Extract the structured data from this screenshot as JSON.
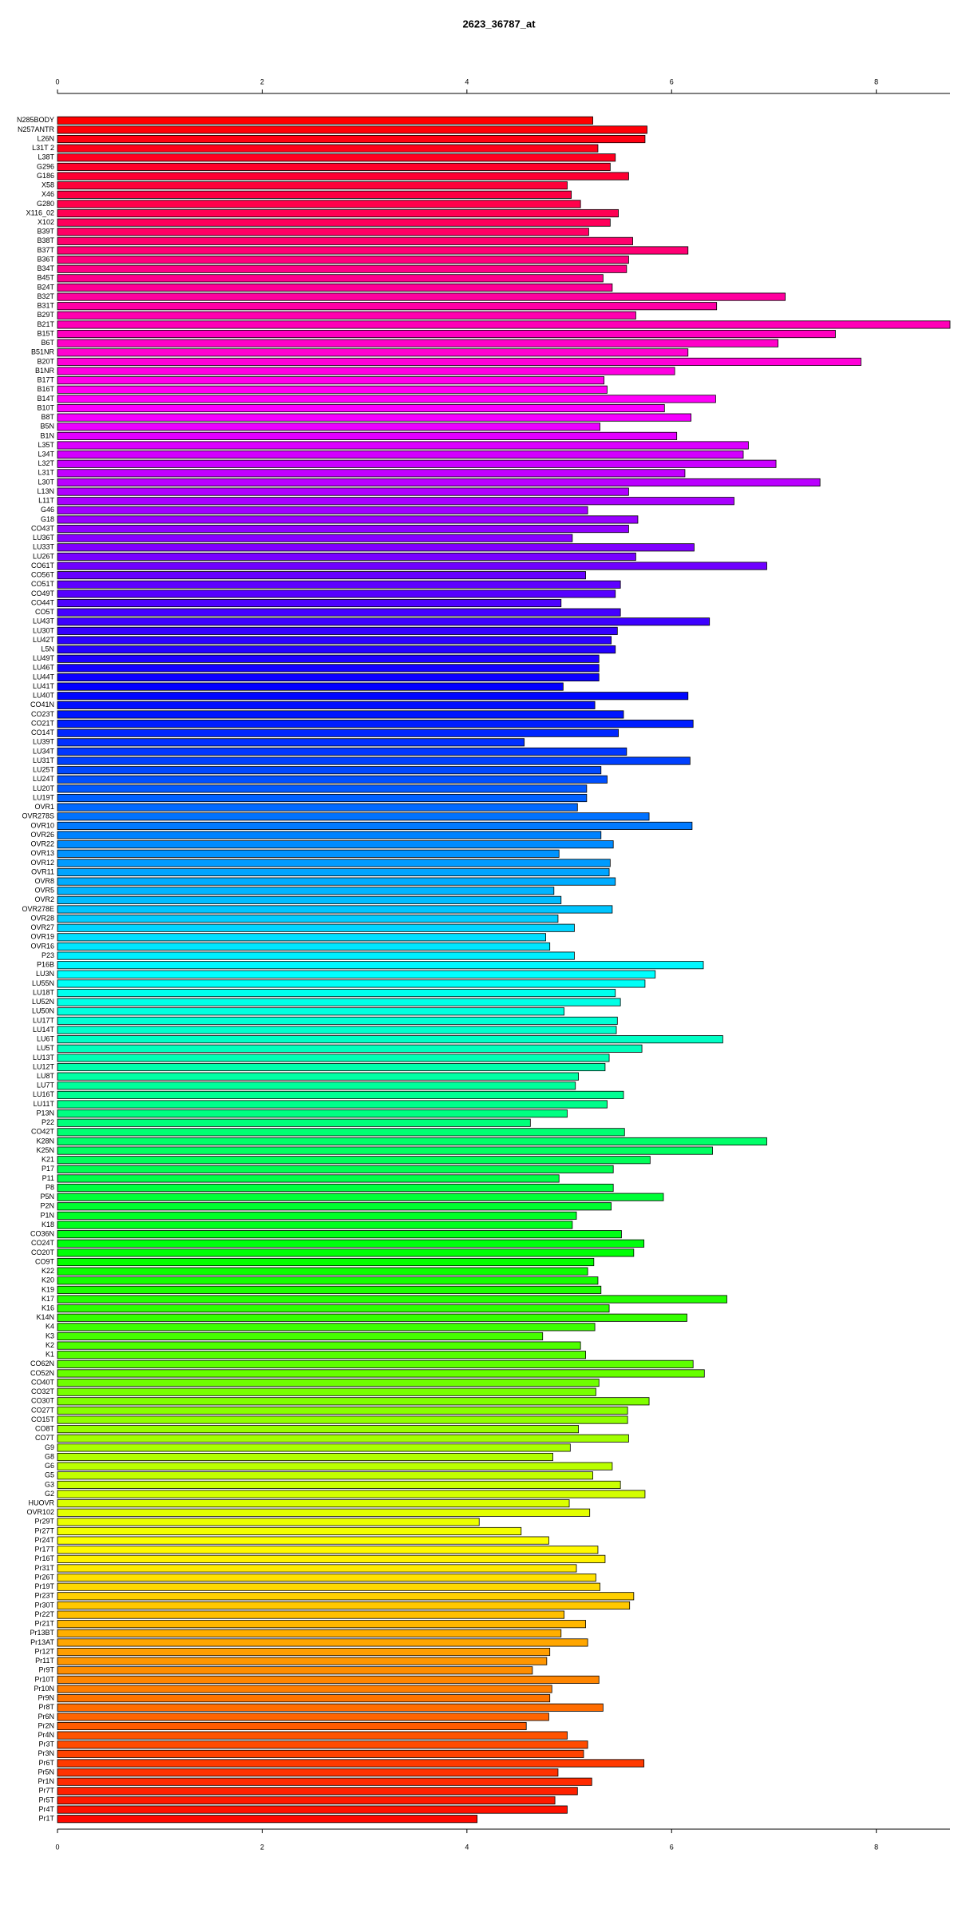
{
  "chart_data": {
    "type": "barh",
    "title": "2623_36787_at",
    "colormap": "rainbow",
    "xlim": [
      0,
      8.72
    ],
    "xticks": [
      0,
      2,
      4,
      6,
      8
    ],
    "categories": [
      "N285BODY",
      "N257ANTR",
      "L26N",
      "L31T 2",
      "L38T",
      "G296",
      "G186",
      "X58",
      "X46",
      "G280",
      "X116_02",
      "X102",
      "B39T",
      "B38T",
      "B37T",
      "B36T",
      "B34T",
      "B45T",
      "B24T",
      "B32T",
      "B31T",
      "B29T",
      "B21T",
      "B15T",
      "B6T",
      "B51NR",
      "B20T",
      "B1NR",
      "B17T",
      "B16T",
      "B14T",
      "B10T",
      "B8T",
      "B5N",
      "B1N",
      "L35T",
      "L34T",
      "L32T",
      "L31T",
      "L30T",
      "L13N",
      "L11T",
      "G46",
      "G18",
      "CO43T",
      "LU36T",
      "LU33T",
      "LU26T",
      "CO61T",
      "CO56T",
      "CO51T",
      "CO49T",
      "CO44T",
      "CO5T",
      "LU43T",
      "LU30T",
      "LU42T",
      "L5N",
      "LU49T",
      "LU46T",
      "LU44T",
      "LU41T",
      "LU40T",
      "CO41N",
      "CO23T",
      "CO21T",
      "CO14T",
      "LU39T",
      "LU34T",
      "LU31T",
      "LU25T",
      "LU24T",
      "LU20T",
      "LU19T",
      "OVR1",
      "OVR278S",
      "OVR10",
      "OVR26",
      "OVR22",
      "OVR13",
      "OVR12",
      "OVR11",
      "OVR8",
      "OVR5",
      "OVR2",
      "OVR278E",
      "OVR28",
      "OVR27",
      "OVR19",
      "OVR16",
      "P23",
      "P16B",
      "LU3N",
      "LU55N",
      "LU18T",
      "LU52N",
      "LU50N",
      "LU17T",
      "LU14T",
      "LU6T",
      "LU5T",
      "LU13T",
      "LU12T",
      "LU8T",
      "LU7T",
      "LU16T",
      "LU11T",
      "P13N",
      "P22",
      "CO42T",
      "K28N",
      "K25N",
      "K21",
      "P17",
      "P11",
      "P8",
      "P5N",
      "P2N",
      "P1N",
      "K18",
      "CO36N",
      "CO24T",
      "CO20T",
      "CO9T",
      "K22",
      "K20",
      "K19",
      "K17",
      "K16",
      "K14N",
      "K4",
      "K3",
      "K2",
      "K1",
      "CO62N",
      "CO52N",
      "CO40T",
      "CO32T",
      "CO30T",
      "CO27T",
      "CO15T",
      "CO8T",
      "CO7T",
      "G9",
      "G8",
      "G6",
      "G5",
      "G3",
      "G2",
      "HUOVR",
      "OVR102",
      "Pr29T",
      "Pr27T",
      "Pr24T",
      "Pr17T",
      "Pr16T",
      "Pr31T",
      "Pr26T",
      "Pr19T",
      "Pr23T",
      "Pr30T",
      "Pr22T",
      "Pr21T",
      "Pr13BT",
      "Pr13AT",
      "Pr12T",
      "Pr11T",
      "Pr9T",
      "Pr10T",
      "Pr10N",
      "Pr9N",
      "Pr8T",
      "Pr6N",
      "Pr2N",
      "Pr4N",
      "Pr3T",
      "Pr3N",
      "Pr6T",
      "Pr5N",
      "Pr1N",
      "Pr7T",
      "Pr5T",
      "Pr4T",
      "Pr1T"
    ],
    "values": [
      5.23,
      5.76,
      5.74,
      5.28,
      5.45,
      5.4,
      5.58,
      4.98,
      5.02,
      5.11,
      5.48,
      5.4,
      5.19,
      5.62,
      6.16,
      5.58,
      5.56,
      5.33,
      5.42,
      7.11,
      6.44,
      5.65,
      8.72,
      7.6,
      7.04,
      6.16,
      7.85,
      6.03,
      5.34,
      5.37,
      6.43,
      5.93,
      6.19,
      5.3,
      6.05,
      6.75,
      6.7,
      7.02,
      6.13,
      7.45,
      5.58,
      6.61,
      5.18,
      5.67,
      5.58,
      5.03,
      6.22,
      5.65,
      6.93,
      5.16,
      5.5,
      5.45,
      4.92,
      5.5,
      6.37,
      5.47,
      5.41,
      5.45,
      5.29,
      5.29,
      5.29,
      4.94,
      6.16,
      5.25,
      5.53,
      6.21,
      5.48,
      4.56,
      5.56,
      6.18,
      5.31,
      5.37,
      5.17,
      5.17,
      5.08,
      5.78,
      6.2,
      5.31,
      5.43,
      4.9,
      5.4,
      5.39,
      5.45,
      4.85,
      4.92,
      5.42,
      4.89,
      5.05,
      4.77,
      4.81,
      5.05,
      6.31,
      5.84,
      5.74,
      5.45,
      5.5,
      4.95,
      5.47,
      5.46,
      6.5,
      5.71,
      5.39,
      5.35,
      5.09,
      5.06,
      5.53,
      5.37,
      4.98,
      4.62,
      5.54,
      6.93,
      6.4,
      5.79,
      5.43,
      4.9,
      5.43,
      5.92,
      5.41,
      5.07,
      5.03,
      5.51,
      5.73,
      5.63,
      5.24,
      5.18,
      5.28,
      5.31,
      6.54,
      5.39,
      6.15,
      5.25,
      4.74,
      5.11,
      5.16,
      6.21,
      6.32,
      5.29,
      5.26,
      5.78,
      5.57,
      5.57,
      5.09,
      5.58,
      5.01,
      4.84,
      5.42,
      5.23,
      5.5,
      5.74,
      5.0,
      5.2,
      4.12,
      4.53,
      4.8,
      5.28,
      5.35,
      5.07,
      5.26,
      5.3,
      5.63,
      5.59,
      4.95,
      5.16,
      4.92,
      5.18,
      4.81,
      4.78,
      4.64,
      5.29,
      4.83,
      4.81,
      5.33,
      4.8,
      4.58,
      4.98,
      5.18,
      5.14,
      5.73,
      4.89,
      5.22,
      5.08,
      4.86,
      4.98,
      4.1
    ]
  }
}
